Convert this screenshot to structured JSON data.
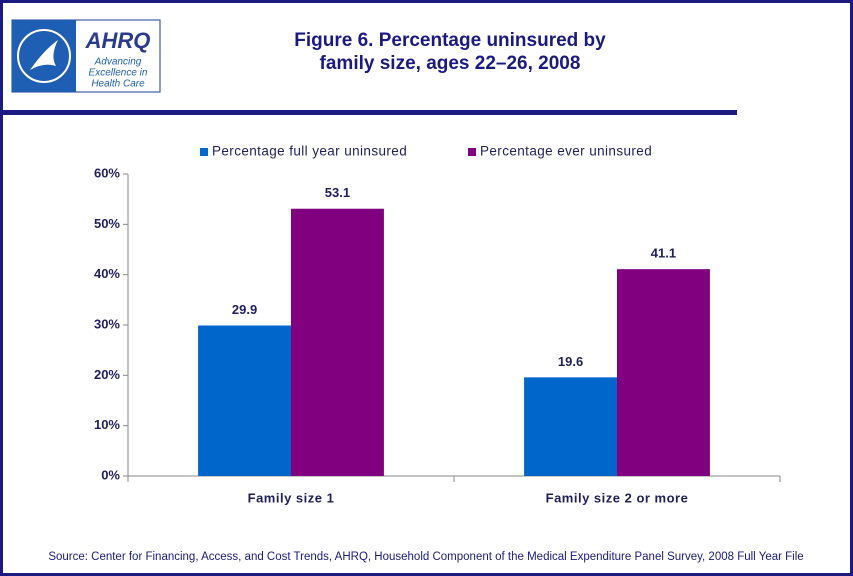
{
  "logo": {
    "name": "AHRQ",
    "tagline": [
      "Advancing",
      "Excellence in",
      "Health Care"
    ]
  },
  "chart_data": {
    "type": "bar",
    "title": [
      "Figure 6. Percentage uninsured by",
      "family size, ages 22–26, 2008"
    ],
    "categories": [
      "Family size 1",
      "Family size 2 or more"
    ],
    "series": [
      {
        "name": "Percentage full year uninsured",
        "color": "#0066cc",
        "values": [
          29.9,
          19.6
        ]
      },
      {
        "name": "Percentage ever uninsured",
        "color": "#800080",
        "values": [
          53.1,
          41.1
        ]
      }
    ],
    "ylim": [
      0,
      60
    ],
    "yticks": [
      {
        "value": 0,
        "label": "0%"
      },
      {
        "value": 10,
        "label": "10%"
      },
      {
        "value": 20,
        "label": "20%"
      },
      {
        "value": 30,
        "label": "30%"
      },
      {
        "value": 40,
        "label": "40%"
      },
      {
        "value": 50,
        "label": "50%"
      },
      {
        "value": 60,
        "label": "60%"
      }
    ],
    "legend": "top",
    "source": "Source: Center for Financing, Access, and Cost Trends, AHRQ, Household Component of the Medical Expenditure Panel Survey, 2008 Full Year File"
  }
}
